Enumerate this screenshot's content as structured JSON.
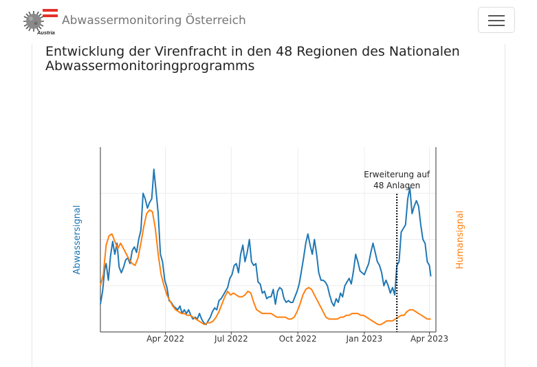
{
  "navbar": {
    "brand_sub": "Austria",
    "title": "Abwassermonitoring Österreich",
    "menu_icon": "hamburger-icon"
  },
  "colors": {
    "abwasser": "#1f77b4",
    "human": "#ff7f0e",
    "grid": "#ececec"
  },
  "chart_data": {
    "type": "line",
    "title": "Entwicklung der Virenfracht in den 48 Regionen des Nationalen Abwassermonitoringprogramms",
    "x_range": [
      "2022-01-01",
      "2023-04-10"
    ],
    "y_range": [
      0,
      100
    ],
    "grid": true,
    "x_tick_labels": [
      "Apr 2022",
      "Jul 2022",
      "Oct 2022",
      "Jan 2023",
      "Apr 2023"
    ],
    "x_ticks": [
      "2022-04-01",
      "2022-07-01",
      "2022-10-01",
      "2023-01-01",
      "2023-04-01"
    ],
    "y_axes": [
      {
        "label": "Abwassersignal",
        "side": "left",
        "color": "#1f77b4"
      },
      {
        "label": "Humansignal",
        "side": "right",
        "color": "#ff7f0e"
      }
    ],
    "annotation": {
      "text_line1": "Erweiterung auf",
      "text_line2": "48 Anlagen",
      "x": "2023-02-15",
      "style": "dotted-vline"
    },
    "series": [
      {
        "name": "Abwassersignal",
        "color": "#1f77b4",
        "points": [
          [
            "2022-01-01",
            15
          ],
          [
            "2022-01-04",
            22
          ],
          [
            "2022-01-07",
            34
          ],
          [
            "2022-01-09",
            37
          ],
          [
            "2022-01-12",
            28
          ],
          [
            "2022-01-15",
            41
          ],
          [
            "2022-01-18",
            49
          ],
          [
            "2022-01-21",
            42
          ],
          [
            "2022-01-24",
            48
          ],
          [
            "2022-01-27",
            35
          ],
          [
            "2022-01-30",
            32
          ],
          [
            "2022-02-02",
            35
          ],
          [
            "2022-02-05",
            39
          ],
          [
            "2022-02-08",
            40
          ],
          [
            "2022-02-11",
            37
          ],
          [
            "2022-02-14",
            44
          ],
          [
            "2022-02-17",
            46
          ],
          [
            "2022-02-20",
            43
          ],
          [
            "2022-02-23",
            50
          ],
          [
            "2022-02-26",
            55
          ],
          [
            "2022-03-01",
            75
          ],
          [
            "2022-03-04",
            72
          ],
          [
            "2022-03-07",
            67
          ],
          [
            "2022-03-10",
            70
          ],
          [
            "2022-03-13",
            72
          ],
          [
            "2022-03-16",
            88
          ],
          [
            "2022-03-19",
            76
          ],
          [
            "2022-03-22",
            64
          ],
          [
            "2022-03-25",
            42
          ],
          [
            "2022-03-28",
            38
          ],
          [
            "2022-03-31",
            28
          ],
          [
            "2022-04-03",
            24
          ],
          [
            "2022-04-06",
            17
          ],
          [
            "2022-04-09",
            16
          ],
          [
            "2022-04-12",
            14
          ],
          [
            "2022-04-15",
            13
          ],
          [
            "2022-04-18",
            12
          ],
          [
            "2022-04-21",
            14
          ],
          [
            "2022-04-24",
            10
          ],
          [
            "2022-04-27",
            12
          ],
          [
            "2022-04-30",
            10
          ],
          [
            "2022-05-03",
            12
          ],
          [
            "2022-05-06",
            9
          ],
          [
            "2022-05-09",
            7
          ],
          [
            "2022-05-12",
            8
          ],
          [
            "2022-05-15",
            7
          ],
          [
            "2022-05-18",
            10
          ],
          [
            "2022-05-21",
            7
          ],
          [
            "2022-05-24",
            5
          ],
          [
            "2022-05-27",
            4
          ],
          [
            "2022-05-30",
            6
          ],
          [
            "2022-06-02",
            8
          ],
          [
            "2022-06-05",
            11
          ],
          [
            "2022-06-08",
            13
          ],
          [
            "2022-06-11",
            12
          ],
          [
            "2022-06-14",
            17
          ],
          [
            "2022-06-17",
            18
          ],
          [
            "2022-06-20",
            20
          ],
          [
            "2022-06-23",
            22
          ],
          [
            "2022-06-26",
            24
          ],
          [
            "2022-06-29",
            29
          ],
          [
            "2022-07-02",
            31
          ],
          [
            "2022-07-05",
            36
          ],
          [
            "2022-07-08",
            37
          ],
          [
            "2022-07-11",
            32
          ],
          [
            "2022-07-14",
            42
          ],
          [
            "2022-07-17",
            47
          ],
          [
            "2022-07-20",
            38
          ],
          [
            "2022-07-23",
            43
          ],
          [
            "2022-07-26",
            50
          ],
          [
            "2022-07-29",
            38
          ],
          [
            "2022-08-01",
            36
          ],
          [
            "2022-08-04",
            37
          ],
          [
            "2022-08-07",
            27
          ],
          [
            "2022-08-10",
            26
          ],
          [
            "2022-08-13",
            21
          ],
          [
            "2022-08-16",
            22
          ],
          [
            "2022-08-19",
            18
          ],
          [
            "2022-08-22",
            19
          ],
          [
            "2022-08-25",
            19
          ],
          [
            "2022-08-28",
            23
          ],
          [
            "2022-08-31",
            15
          ],
          [
            "2022-09-03",
            22
          ],
          [
            "2022-09-06",
            24
          ],
          [
            "2022-09-09",
            23
          ],
          [
            "2022-09-12",
            18
          ],
          [
            "2022-09-15",
            16
          ],
          [
            "2022-09-18",
            17
          ],
          [
            "2022-09-21",
            16
          ],
          [
            "2022-09-24",
            16
          ],
          [
            "2022-09-27",
            19
          ],
          [
            "2022-09-30",
            22
          ],
          [
            "2022-10-03",
            26
          ],
          [
            "2022-10-06",
            33
          ],
          [
            "2022-10-09",
            40
          ],
          [
            "2022-10-12",
            48
          ],
          [
            "2022-10-15",
            53
          ],
          [
            "2022-10-18",
            47
          ],
          [
            "2022-10-21",
            42
          ],
          [
            "2022-10-24",
            50
          ],
          [
            "2022-10-27",
            42
          ],
          [
            "2022-10-30",
            32
          ],
          [
            "2022-11-02",
            28
          ],
          [
            "2022-11-05",
            28
          ],
          [
            "2022-11-08",
            27
          ],
          [
            "2022-11-11",
            25
          ],
          [
            "2022-11-14",
            20
          ],
          [
            "2022-11-17",
            16
          ],
          [
            "2022-11-20",
            14
          ],
          [
            "2022-11-23",
            18
          ],
          [
            "2022-11-26",
            16
          ],
          [
            "2022-11-29",
            21
          ],
          [
            "2022-12-02",
            19
          ],
          [
            "2022-12-05",
            25
          ],
          [
            "2022-12-08",
            27
          ],
          [
            "2022-12-11",
            29
          ],
          [
            "2022-12-14",
            26
          ],
          [
            "2022-12-17",
            33
          ],
          [
            "2022-12-20",
            42
          ],
          [
            "2022-12-23",
            38
          ],
          [
            "2022-12-26",
            33
          ],
          [
            "2023-01-01",
            31
          ],
          [
            "2023-01-04",
            34
          ],
          [
            "2023-01-07",
            37
          ],
          [
            "2023-01-10",
            43
          ],
          [
            "2023-01-13",
            48
          ],
          [
            "2023-01-16",
            43
          ],
          [
            "2023-01-19",
            38
          ],
          [
            "2023-01-22",
            36
          ],
          [
            "2023-01-25",
            32
          ],
          [
            "2023-01-28",
            25
          ],
          [
            "2023-01-31",
            28
          ],
          [
            "2023-02-03",
            25
          ],
          [
            "2023-02-06",
            21
          ],
          [
            "2023-02-09",
            24
          ],
          [
            "2023-02-12",
            20
          ],
          [
            "2023-02-15",
            36
          ],
          [
            "2023-02-18",
            38
          ],
          [
            "2023-02-21",
            54
          ],
          [
            "2023-02-24",
            56
          ],
          [
            "2023-02-27",
            58
          ],
          [
            "2023-03-02",
            72
          ],
          [
            "2023-03-05",
            78
          ],
          [
            "2023-03-08",
            64
          ],
          [
            "2023-03-11",
            68
          ],
          [
            "2023-03-14",
            71
          ],
          [
            "2023-03-17",
            68
          ],
          [
            "2023-03-20",
            58
          ],
          [
            "2023-03-23",
            50
          ],
          [
            "2023-03-26",
            48
          ],
          [
            "2023-03-29",
            38
          ],
          [
            "2023-04-01",
            36
          ],
          [
            "2023-04-03",
            30
          ]
        ]
      },
      {
        "name": "Humansignal",
        "color": "#ff7f0e",
        "points": [
          [
            "2022-01-01",
            25
          ],
          [
            "2022-01-05",
            31
          ],
          [
            "2022-01-09",
            47
          ],
          [
            "2022-01-13",
            52
          ],
          [
            "2022-01-17",
            53
          ],
          [
            "2022-01-21",
            49
          ],
          [
            "2022-01-25",
            45
          ],
          [
            "2022-01-29",
            48
          ],
          [
            "2022-02-02",
            45
          ],
          [
            "2022-02-06",
            42
          ],
          [
            "2022-02-10",
            39
          ],
          [
            "2022-02-14",
            37
          ],
          [
            "2022-02-18",
            36
          ],
          [
            "2022-02-22",
            40
          ],
          [
            "2022-02-26",
            48
          ],
          [
            "2022-03-02",
            57
          ],
          [
            "2022-03-06",
            64
          ],
          [
            "2022-03-10",
            66
          ],
          [
            "2022-03-14",
            65
          ],
          [
            "2022-03-18",
            56
          ],
          [
            "2022-03-22",
            42
          ],
          [
            "2022-03-26",
            31
          ],
          [
            "2022-03-30",
            25
          ],
          [
            "2022-04-03",
            20
          ],
          [
            "2022-04-07",
            17
          ],
          [
            "2022-04-11",
            14
          ],
          [
            "2022-04-15",
            12
          ],
          [
            "2022-04-19",
            11
          ],
          [
            "2022-04-23",
            10
          ],
          [
            "2022-04-27",
            10
          ],
          [
            "2022-05-01",
            9
          ],
          [
            "2022-05-05",
            9
          ],
          [
            "2022-05-09",
            8
          ],
          [
            "2022-05-13",
            7
          ],
          [
            "2022-05-17",
            6
          ],
          [
            "2022-05-21",
            5
          ],
          [
            "2022-05-25",
            4
          ],
          [
            "2022-05-29",
            5
          ],
          [
            "2022-06-02",
            5
          ],
          [
            "2022-06-06",
            6
          ],
          [
            "2022-06-10",
            8
          ],
          [
            "2022-06-14",
            11
          ],
          [
            "2022-06-18",
            15
          ],
          [
            "2022-06-22",
            19
          ],
          [
            "2022-06-26",
            22
          ],
          [
            "2022-06-30",
            20
          ],
          [
            "2022-07-04",
            21
          ],
          [
            "2022-07-08",
            20
          ],
          [
            "2022-07-12",
            19
          ],
          [
            "2022-07-16",
            19
          ],
          [
            "2022-07-20",
            20
          ],
          [
            "2022-07-24",
            22
          ],
          [
            "2022-07-28",
            21
          ],
          [
            "2022-08-01",
            16
          ],
          [
            "2022-08-05",
            12
          ],
          [
            "2022-08-09",
            11
          ],
          [
            "2022-08-13",
            10
          ],
          [
            "2022-08-17",
            10
          ],
          [
            "2022-08-21",
            10
          ],
          [
            "2022-08-25",
            10
          ],
          [
            "2022-08-29",
            9
          ],
          [
            "2022-09-02",
            8
          ],
          [
            "2022-09-06",
            8
          ],
          [
            "2022-09-10",
            8
          ],
          [
            "2022-09-14",
            8
          ],
          [
            "2022-09-18",
            7
          ],
          [
            "2022-09-22",
            7
          ],
          [
            "2022-09-26",
            8
          ],
          [
            "2022-09-30",
            11
          ],
          [
            "2022-10-04",
            15
          ],
          [
            "2022-10-08",
            20
          ],
          [
            "2022-10-12",
            23
          ],
          [
            "2022-10-16",
            24
          ],
          [
            "2022-10-20",
            23
          ],
          [
            "2022-10-24",
            20
          ],
          [
            "2022-10-28",
            17
          ],
          [
            "2022-11-01",
            14
          ],
          [
            "2022-11-05",
            11
          ],
          [
            "2022-11-09",
            8
          ],
          [
            "2022-11-13",
            7
          ],
          [
            "2022-11-17",
            7
          ],
          [
            "2022-11-21",
            7
          ],
          [
            "2022-11-25",
            7
          ],
          [
            "2022-11-29",
            8
          ],
          [
            "2022-12-03",
            8
          ],
          [
            "2022-12-07",
            9
          ],
          [
            "2022-12-11",
            9
          ],
          [
            "2022-12-15",
            10
          ],
          [
            "2022-12-19",
            10
          ],
          [
            "2022-12-23",
            10
          ],
          [
            "2022-12-27",
            9
          ],
          [
            "2022-12-31",
            9
          ],
          [
            "2023-01-04",
            8
          ],
          [
            "2023-01-08",
            7
          ],
          [
            "2023-01-12",
            6
          ],
          [
            "2023-01-16",
            5
          ],
          [
            "2023-01-20",
            4
          ],
          [
            "2023-01-24",
            4
          ],
          [
            "2023-01-28",
            5
          ],
          [
            "2023-02-01",
            6
          ],
          [
            "2023-02-05",
            6
          ],
          [
            "2023-02-09",
            6
          ],
          [
            "2023-02-13",
            7
          ],
          [
            "2023-02-17",
            8
          ],
          [
            "2023-02-21",
            9
          ],
          [
            "2023-02-25",
            9
          ],
          [
            "2023-03-01",
            11
          ],
          [
            "2023-03-05",
            12
          ],
          [
            "2023-03-09",
            12
          ],
          [
            "2023-03-13",
            11
          ],
          [
            "2023-03-17",
            10
          ],
          [
            "2023-03-21",
            9
          ],
          [
            "2023-03-25",
            8
          ],
          [
            "2023-03-29",
            7
          ],
          [
            "2023-04-03",
            7
          ]
        ]
      }
    ]
  }
}
